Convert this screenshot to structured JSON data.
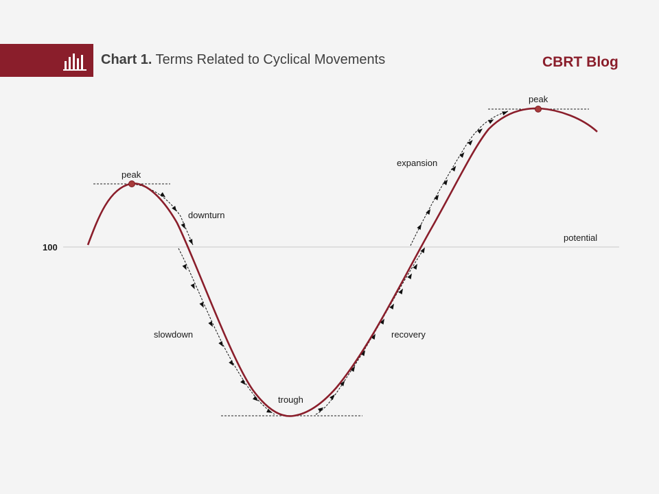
{
  "header": {
    "chart_number": "Chart 1.",
    "chart_title": "Terms Related to Cyclical Movements",
    "brand": "CBRT Blog",
    "icon": "bar-chart-icon"
  },
  "diagram": {
    "axis_value": "100",
    "reference_line_label": "potential",
    "phase_labels": {
      "peak_left": "peak",
      "downturn": "downturn",
      "slowdown": "slowdown",
      "trough": "trough",
      "recovery": "recovery",
      "expansion": "expansion",
      "peak_right": "peak"
    }
  },
  "colors": {
    "accent": "#8a1e2b",
    "curve": "#8a1e2b",
    "reference_line": "#c8c8c8",
    "background": "#f4f4f4",
    "text": "#1a1a1a"
  }
}
